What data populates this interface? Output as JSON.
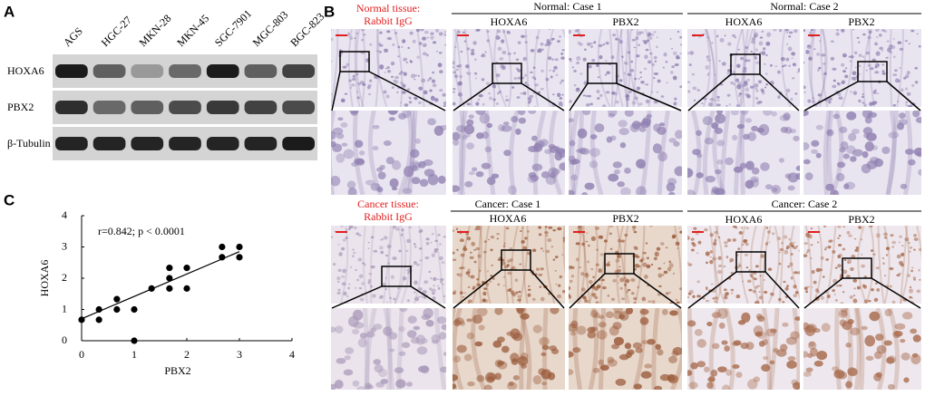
{
  "panel_a": {
    "label": "A",
    "lanes": [
      "AGS",
      "HGC-27",
      "MKN-28",
      "MKN-45",
      "SGC-7901",
      "MGC-803",
      "BGC-823"
    ],
    "rows": [
      "HOXA6",
      "PBX2",
      "β-Tubulin"
    ]
  },
  "panel_b": {
    "label": "B",
    "normal_control": [
      "Normal tissue:",
      "Rabbit IgG"
    ],
    "normal_cases": [
      {
        "title": "Normal: Case 1",
        "stains": [
          "HOXA6",
          "PBX2"
        ]
      },
      {
        "title": "Normal: Case 2",
        "stains": [
          "HOXA6",
          "PBX2"
        ]
      }
    ],
    "cancer_control": [
      "Cancer tissue:",
      "Rabbit IgG"
    ],
    "cancer_cases": [
      {
        "title": "Cancer: Case 1",
        "stains": [
          "HOXA6",
          "PBX2"
        ]
      },
      {
        "title": "Cancer: Case 2",
        "stains": [
          "HOXA6",
          "PBX2"
        ]
      }
    ]
  },
  "panel_c": {
    "label": "C"
  },
  "chart_data": {
    "type": "scatter",
    "x": [
      0,
      0.33,
      0.33,
      0.67,
      0.67,
      1,
      1,
      1.33,
      1.67,
      1.67,
      1.67,
      2,
      2,
      2.67,
      2.67,
      3,
      3
    ],
    "y": [
      0.67,
      0.67,
      1,
      1,
      1.33,
      1,
      0,
      1.67,
      1.67,
      2,
      2.33,
      1.67,
      2.33,
      2.67,
      3,
      3,
      2.67
    ],
    "color": "#000000",
    "trendline": {
      "x": [
        0,
        3
      ],
      "y": [
        0.7,
        2.85
      ]
    },
    "xlim": [
      0,
      4
    ],
    "ylim": [
      0,
      4
    ],
    "xticks": [
      0,
      1,
      2,
      3,
      4
    ],
    "yticks": [
      0,
      1,
      2,
      3,
      4
    ],
    "x_label": "PBX2",
    "y_label": "HOXA6",
    "annotation": "r=0.842;  p < 0.0001"
  }
}
